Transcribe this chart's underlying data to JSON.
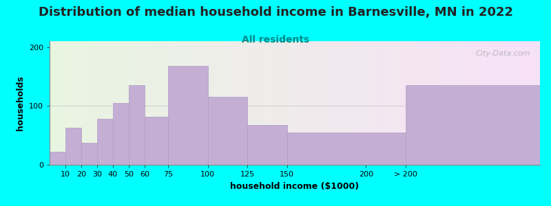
{
  "title": "Distribution of median household income in Barnesville, MN in 2022",
  "subtitle": "All residents",
  "xlabel": "household income ($1000)",
  "ylabel": "households",
  "bg_color": "#00FFFF",
  "bar_color": "#c4aed4",
  "bar_edge_color": "#b09cc4",
  "categories": [
    "10",
    "20",
    "30",
    "40",
    "50",
    "60",
    "75",
    "100",
    "125",
    "150",
    "200",
    "> 200"
  ],
  "bin_left": [
    0,
    10,
    20,
    30,
    40,
    50,
    60,
    75,
    100,
    125,
    150,
    225
  ],
  "bin_right": [
    10,
    20,
    30,
    40,
    50,
    60,
    75,
    100,
    125,
    150,
    225,
    310
  ],
  "values": [
    22,
    63,
    37,
    78,
    105,
    135,
    82,
    168,
    115,
    68,
    55,
    135
  ],
  "tick_positions": [
    10,
    20,
    30,
    40,
    50,
    60,
    75,
    100,
    125,
    150,
    200,
    225
  ],
  "tick_labels": [
    "10",
    "20",
    "30",
    "40",
    "50",
    "60",
    "75",
    "100",
    "125",
    "150",
    "200",
    "> 200"
  ],
  "ylim": [
    0,
    210
  ],
  "yticks": [
    0,
    100,
    200
  ],
  "xlim": [
    0,
    310
  ],
  "watermark": "City-Data.com",
  "title_fontsize": 13,
  "subtitle_fontsize": 10,
  "axis_label_fontsize": 9,
  "tick_fontsize": 8
}
